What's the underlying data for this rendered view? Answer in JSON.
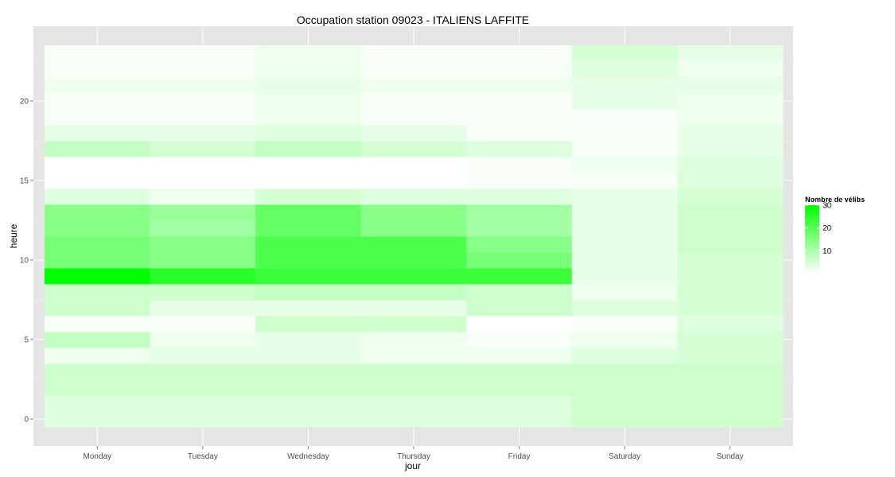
{
  "chart_data": {
    "type": "heatmap",
    "title": "Occupation station 09023 - ITALIENS LAFFITE",
    "xlabel": "jour",
    "ylabel": "heure",
    "categories": [
      "Monday",
      "Tuesday",
      "Wednesday",
      "Thursday",
      "Friday",
      "Saturday",
      "Sunday"
    ],
    "y_ticks": [
      0,
      5,
      10,
      15,
      20
    ],
    "ylim": [
      -0.5,
      23.5
    ],
    "legend": {
      "title": "Nombre de vélibs",
      "ticks": [
        10,
        20,
        30
      ],
      "range": [
        0,
        30
      ],
      "position": "right"
    },
    "colors": {
      "low": "#ffffff",
      "high": "#00ff00",
      "panel": "#e5e5e5",
      "grid": "#ffffff"
    },
    "grid": true,
    "values": [
      [
        4,
        4,
        6,
        6,
        2,
        7,
        1,
        6,
        6,
        30,
        16,
        16,
        14,
        14,
        4,
        0,
        0,
        7,
        3,
        1,
        1,
        2,
        1,
        1
      ],
      [
        4,
        4,
        6,
        6,
        3,
        2,
        1,
        3,
        6,
        25,
        14,
        14,
        11,
        12,
        2,
        0,
        0,
        5,
        3,
        1,
        1,
        2,
        1,
        1
      ],
      [
        4,
        4,
        6,
        6,
        3,
        3,
        6,
        3,
        7,
        23,
        21,
        21,
        18,
        18,
        5,
        0,
        0,
        7,
        4,
        2,
        2,
        3,
        2,
        2
      ],
      [
        4,
        4,
        6,
        6,
        2,
        2,
        6,
        3,
        7,
        23,
        21,
        21,
        14,
        14,
        4,
        0,
        0,
        5,
        3,
        1,
        1,
        2,
        1,
        1
      ],
      [
        4,
        4,
        6,
        6,
        2,
        1,
        0,
        6,
        6,
        23,
        16,
        14,
        11,
        11,
        4,
        1,
        1,
        4,
        1,
        1,
        1,
        2,
        1,
        1
      ],
      [
        6,
        6,
        6,
        6,
        4,
        2,
        1,
        4,
        2,
        3,
        3,
        3,
        3,
        3,
        3,
        1,
        2,
        1,
        1,
        1,
        3,
        3,
        4,
        5
      ],
      [
        6,
        6,
        6,
        6,
        5,
        5,
        4,
        5,
        5,
        5,
        5,
        6,
        6,
        6,
        5,
        4,
        4,
        3,
        3,
        2,
        2,
        3,
        2,
        3
      ]
    ],
    "series_note_order": "rows = days (categories order); columns = hours 0..23"
  }
}
